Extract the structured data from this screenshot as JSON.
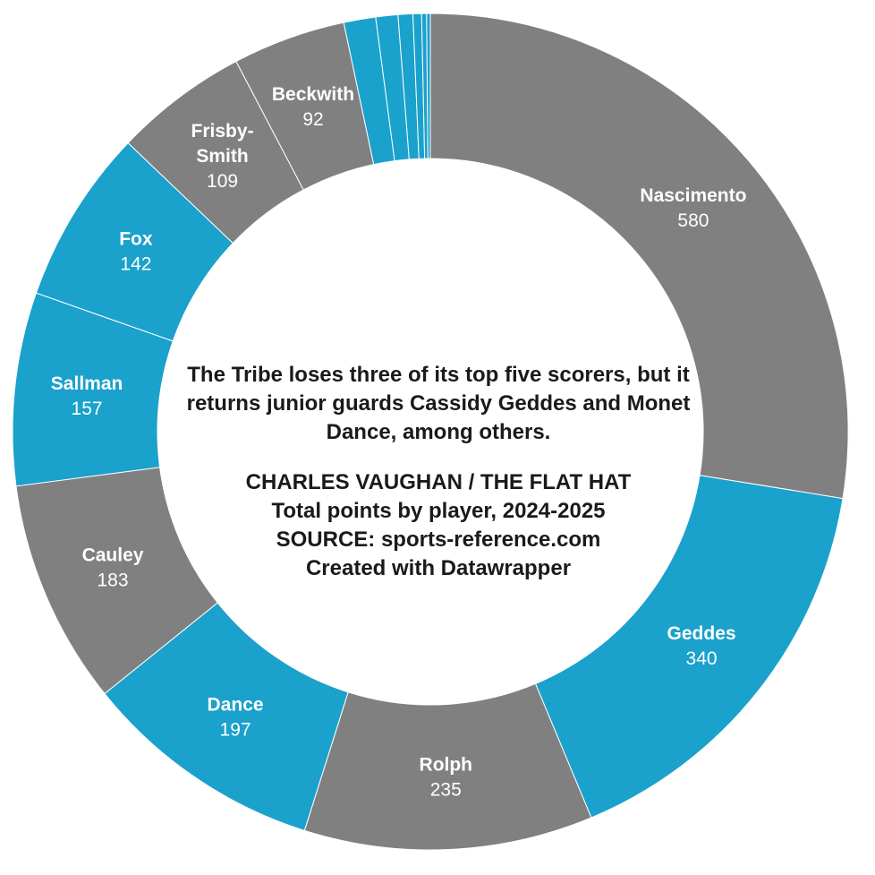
{
  "chart_data": {
    "type": "pie",
    "variant": "donut",
    "title": "The Tribe loses three of its top five scorers, but it returns junior guards Cassidy Geddes and Monet Dance, among others.",
    "credits": [
      "CHARLES VAUGHAN / THE FLAT HAT",
      "Total points by player, 2024-2025",
      "SOURCE: sports-reference.com",
      "Created with Datawrapper"
    ],
    "colors": {
      "gray": "#808080",
      "blue": "#1aa1cc"
    },
    "slices": [
      {
        "label": "Nascimento",
        "value": 580,
        "color": "gray",
        "labeled": true
      },
      {
        "label": "Geddes",
        "value": 340,
        "color": "blue",
        "labeled": true
      },
      {
        "label": "Rolph",
        "value": 235,
        "color": "gray",
        "labeled": true
      },
      {
        "label": "Dance",
        "value": 197,
        "color": "blue",
        "labeled": true
      },
      {
        "label": "Cauley",
        "value": 183,
        "color": "gray",
        "labeled": true
      },
      {
        "label": "Sallman",
        "value": 157,
        "color": "blue",
        "labeled": true
      },
      {
        "label": "Fox",
        "value": 142,
        "color": "blue",
        "labeled": true
      },
      {
        "label": "Frisby-Smith",
        "value": 109,
        "color": "gray",
        "labeled": true
      },
      {
        "label": "Beckwith",
        "value": 92,
        "color": "gray",
        "labeled": true
      },
      {
        "label": "",
        "value": 26,
        "color": "blue",
        "labeled": false
      },
      {
        "label": "",
        "value": 18,
        "color": "blue",
        "labeled": false
      },
      {
        "label": "",
        "value": 12,
        "color": "blue",
        "labeled": false
      },
      {
        "label": "",
        "value": 7,
        "color": "blue",
        "labeled": false
      },
      {
        "label": "",
        "value": 4,
        "color": "blue",
        "labeled": false
      },
      {
        "label": "",
        "value": 3,
        "color": "blue",
        "labeled": false
      }
    ]
  }
}
